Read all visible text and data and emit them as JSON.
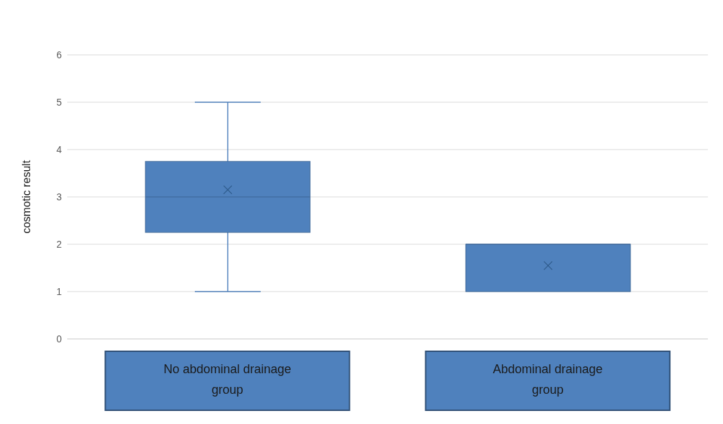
{
  "chart_data": {
    "type": "box",
    "ylabel": "cosmotic result",
    "categories": [
      "No abdominal drainage group",
      "Abdominal drainage group"
    ],
    "color": "#4f81bd",
    "boxes": [
      {
        "low": 1,
        "q1": 2.25,
        "median": 3,
        "q3": 3.75,
        "high": 5,
        "mean": 3.15
      },
      {
        "low": 1,
        "q1": 1,
        "median": 2,
        "q3": 2,
        "high": 2,
        "mean": 1.55
      }
    ],
    "ylim": [
      0,
      6
    ],
    "yticks": [
      0,
      1,
      2,
      3,
      4,
      5,
      6
    ],
    "grid": "y"
  }
}
